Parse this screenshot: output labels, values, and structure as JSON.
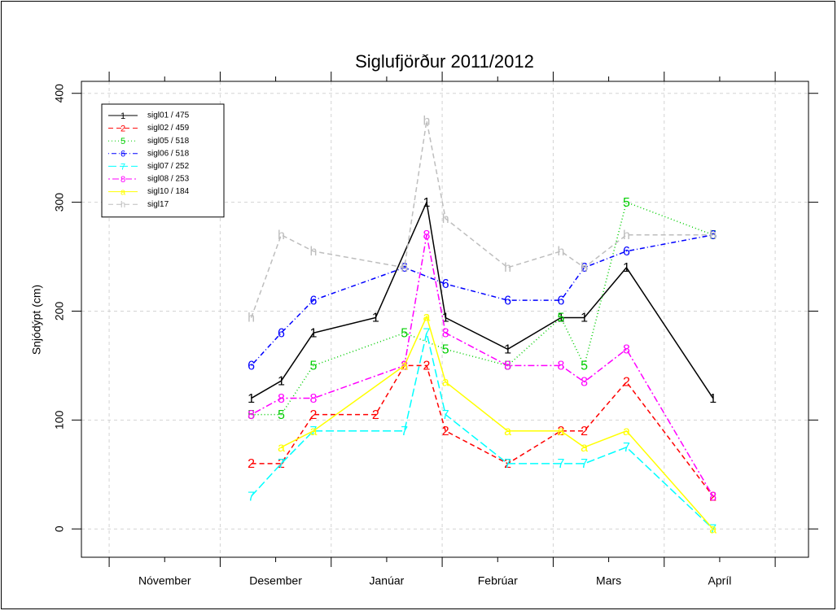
{
  "chart_data": {
    "type": "line",
    "title": "Siglufjörður 2011/2012",
    "ylabel": "Snjódýpt (cm)",
    "xlim": [
      10.75,
      17.3
    ],
    "xticks": [
      {
        "value": 11.5,
        "label": "Nóvember"
      },
      {
        "value": 12.5,
        "label": "Desember"
      },
      {
        "value": 13.5,
        "label": "Janúar"
      },
      {
        "value": 14.5,
        "label": "Febrúar"
      },
      {
        "value": 15.5,
        "label": "Mars"
      },
      {
        "value": 16.5,
        "label": "Apríl"
      }
    ],
    "xgrid": [
      11,
      12,
      13,
      14,
      15,
      16,
      17
    ],
    "ylim": [
      -26,
      411
    ],
    "yticks": [
      0,
      100,
      200,
      300,
      400
    ],
    "grid": true,
    "legend": "top-left",
    "series": [
      {
        "name": "sigl01 / 475",
        "symbol": "1",
        "color": "#000000",
        "dash": "none",
        "x": [
          12.28,
          12.55,
          12.84,
          13.4,
          13.86,
          14.03,
          14.59,
          15.07,
          15.28,
          15.66,
          16.44
        ],
        "values": [
          120,
          136,
          180,
          194,
          300,
          194,
          165,
          194,
          194,
          240,
          120
        ]
      },
      {
        "name": "sigl02 / 459",
        "symbol": "2",
        "color": "#ff0000",
        "dash": "6,4",
        "x": [
          12.28,
          12.55,
          12.84,
          13.4,
          13.66,
          13.86,
          14.03,
          14.59,
          15.07,
          15.28,
          15.66,
          16.44
        ],
        "values": [
          60,
          60,
          105,
          105,
          150,
          150,
          90,
          60,
          90,
          90,
          135,
          30
        ]
      },
      {
        "name": "sigl05 / 518",
        "symbol": "5",
        "color": "#00cd00",
        "dash": "1,3",
        "x": [
          12.28,
          12.55,
          12.84,
          13.66,
          14.03,
          14.59,
          15.07,
          15.28,
          15.66,
          16.44
        ],
        "values": [
          105,
          105,
          150,
          180,
          165,
          150,
          194,
          150,
          300,
          270
        ]
      },
      {
        "name": "sigl06 / 518",
        "symbol": "6",
        "color": "#0000ff",
        "dash": "1,3,6,3",
        "x": [
          12.28,
          12.55,
          12.84,
          13.66,
          14.03,
          14.59,
          15.07,
          15.28,
          15.66,
          16.44
        ],
        "values": [
          150,
          180,
          210,
          240,
          225,
          210,
          210,
          240,
          255,
          270
        ]
      },
      {
        "name": "sigl07 / 252",
        "symbol": "7",
        "color": "#00ffff",
        "dash": "10,4",
        "x": [
          12.28,
          12.55,
          12.84,
          13.66,
          13.86,
          14.03,
          14.59,
          15.07,
          15.28,
          15.66,
          16.44
        ],
        "values": [
          30,
          60,
          90,
          90,
          180,
          105,
          60,
          60,
          60,
          75,
          0
        ]
      },
      {
        "name": "sigl08 / 253",
        "symbol": "8",
        "color": "#ff00ff",
        "dash": "2,3,8,3",
        "x": [
          12.28,
          12.55,
          12.84,
          13.66,
          13.86,
          14.03,
          14.59,
          15.07,
          15.28,
          15.66,
          16.44
        ],
        "values": [
          105,
          120,
          120,
          150,
          270,
          180,
          150,
          150,
          135,
          165,
          30
        ]
      },
      {
        "name": "sigl10 / 184",
        "symbol": "a",
        "color": "#ffff00",
        "dash": "none",
        "x": [
          12.55,
          12.84,
          13.66,
          13.86,
          14.03,
          14.59,
          15.07,
          15.28,
          15.66,
          16.44
        ],
        "values": [
          75,
          90,
          150,
          195,
          135,
          90,
          90,
          75,
          90,
          0
        ]
      },
      {
        "name": "sigl17",
        "symbol": "h",
        "color": "#bebebe",
        "dash": "6,4",
        "x": [
          12.28,
          12.55,
          12.84,
          13.66,
          13.86,
          14.03,
          14.59,
          15.07,
          15.28,
          15.66,
          16.44
        ],
        "values": [
          194,
          270,
          255,
          240,
          375,
          285,
          240,
          255,
          240,
          270,
          270
        ]
      }
    ]
  }
}
